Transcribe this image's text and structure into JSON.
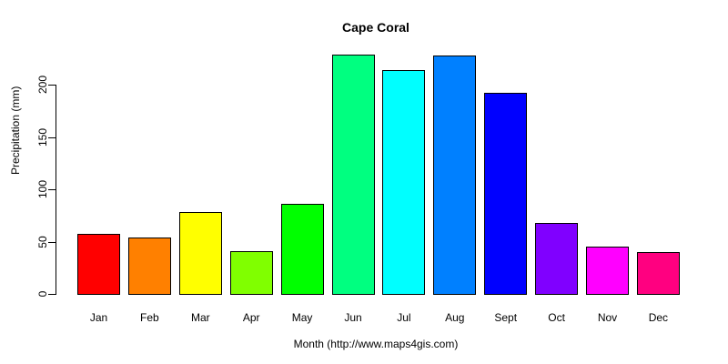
{
  "chart_data": {
    "type": "bar",
    "title": "Cape Coral",
    "xlabel": "Month (http://www.maps4gis.com)",
    "ylabel": "Precipitation (mm)",
    "ylim": [
      0,
      230
    ],
    "yticks": [
      0,
      50,
      100,
      150,
      200
    ],
    "grid": false,
    "categories": [
      "Jan",
      "Feb",
      "Mar",
      "Apr",
      "May",
      "Jun",
      "Jul",
      "Aug",
      "Sept",
      "Oct",
      "Nov",
      "Dec"
    ],
    "values": [
      57,
      54,
      78,
      41,
      86,
      229,
      214,
      228,
      192,
      68,
      45,
      40
    ],
    "colors": [
      "#FF0000",
      "#FF8000",
      "#FFFF00",
      "#80FF00",
      "#00FF00",
      "#00FF80",
      "#00FFFF",
      "#0080FF",
      "#0000FF",
      "#8000FF",
      "#FF00FF",
      "#FF0080"
    ]
  }
}
